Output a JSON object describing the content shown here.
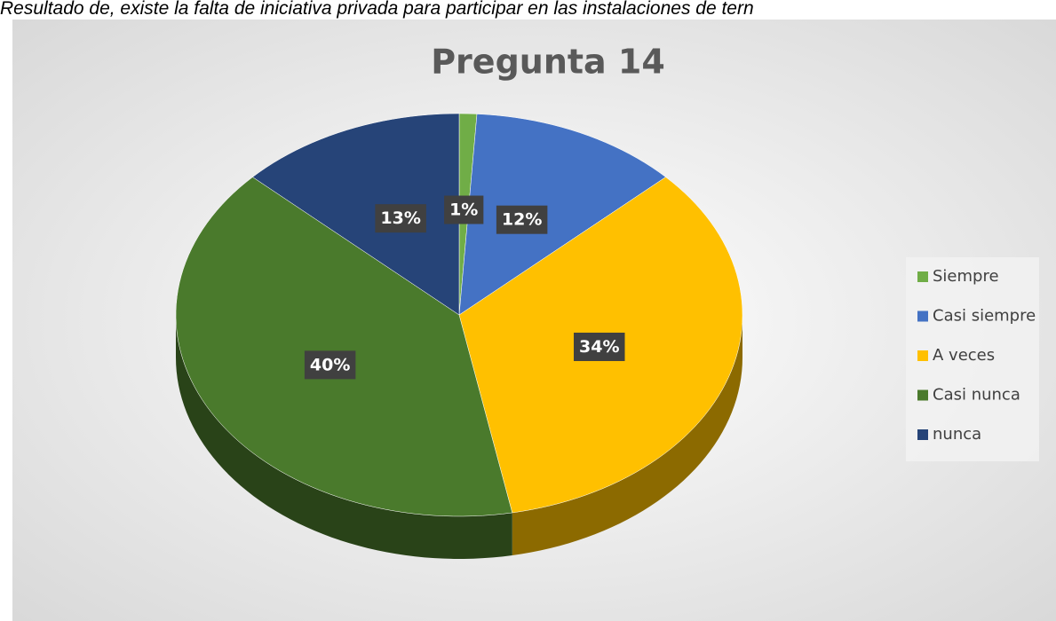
{
  "caption": "Resultado de, existe la falta de iniciativa privada para participar en las instalaciones de tern",
  "chart_data": {
    "type": "pie3d",
    "title": "Pregunta 14",
    "categories": [
      "Siempre",
      "Casi siempre",
      "A veces",
      "Casi nunca",
      "nunca"
    ],
    "values": [
      1,
      12,
      34,
      40,
      13
    ],
    "value_labels": [
      "1%",
      "12%",
      "34%",
      "40%",
      "13%"
    ],
    "colors": [
      "#70ad47",
      "#4472c4",
      "#ffc000",
      "#4a7a2c",
      "#264478"
    ],
    "legend": "right"
  }
}
